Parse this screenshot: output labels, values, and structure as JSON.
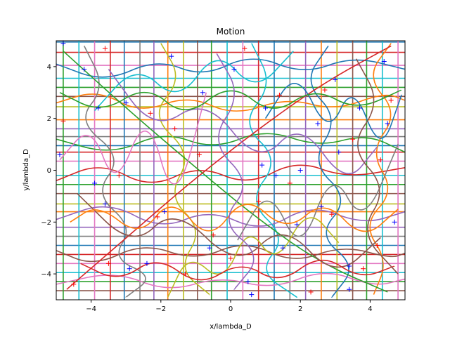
{
  "chart_data": {
    "type": "line",
    "title": "Motion",
    "xlabel": "x/lambda_D",
    "ylabel": "y/lambda_D",
    "xlim": [
      -5,
      5
    ],
    "ylim": [
      -5,
      5
    ],
    "xticks": [
      -4,
      -2,
      0,
      2,
      4
    ],
    "yticks": [
      -4,
      -2,
      0,
      2,
      4
    ],
    "xtick_labels": [
      "−4",
      "−2",
      "0",
      "2",
      "4"
    ],
    "ytick_labels": [
      "−4",
      "−2",
      "0",
      "2",
      "4"
    ],
    "grid": false,
    "legend": "none",
    "marker_colors": {
      "start": "#0000ff",
      "end": "#ff0000"
    },
    "palette": [
      "#1f77b4",
      "#ff7f0e",
      "#2ca02c",
      "#d62728",
      "#9467bd",
      "#8c564b",
      "#e377c2",
      "#7f7f7f",
      "#bcbd22",
      "#17becf"
    ],
    "horizontal_lines_y": [
      4.95,
      4.55,
      4.05,
      3.55,
      3.2,
      2.85,
      2.45,
      1.95,
      1.6,
      1.3,
      0.95,
      0.7,
      0.35,
      -0.2,
      -0.55,
      -0.9,
      -1.3,
      -1.6,
      -2.2,
      -2.55,
      -2.9,
      -3.25,
      -3.6,
      -3.95,
      -4.3,
      -4.65
    ],
    "vertical_lines_x": [
      -4.8,
      -4.35,
      -3.9,
      -3.45,
      -3.05,
      -2.6,
      -2.2,
      -1.8,
      -1.35,
      -0.95,
      -0.55,
      -0.1,
      0.35,
      0.8,
      1.25,
      1.7,
      2.15,
      2.6,
      3.05,
      3.5,
      3.9,
      4.35,
      4.8
    ],
    "trajectories": [
      {
        "x": [
          -5,
          -3.6,
          -2.1,
          -0.8,
          0.6,
          2.1,
          3.5,
          5
        ],
        "y": [
          4.1,
          3.4,
          4.3,
          3.6,
          4.5,
          3.7,
          4.4,
          3.9
        ]
      },
      {
        "x": [
          -5,
          -3.8,
          -2.6,
          -1.2,
          0.1,
          1.6,
          3.0,
          4.4,
          5
        ],
        "y": [
          2.6,
          3.1,
          2.2,
          2.9,
          2.1,
          2.8,
          2.3,
          3.0,
          2.7
        ]
      },
      {
        "x": [
          -5,
          -3.4,
          -1.9,
          -0.5,
          1.0,
          2.5,
          3.9,
          5
        ],
        "y": [
          1.2,
          0.6,
          1.5,
          0.8,
          1.6,
          0.9,
          1.4,
          0.7
        ]
      },
      {
        "x": [
          -5,
          -3.7,
          -2.3,
          -0.9,
          0.5,
          1.9,
          3.3,
          5
        ],
        "y": [
          -0.4,
          0.3,
          -0.7,
          0.2,
          -0.6,
          0.4,
          -0.3,
          0.1
        ]
      },
      {
        "x": [
          -5,
          -3.5,
          -2.0,
          -0.6,
          0.9,
          2.3,
          3.8,
          5
        ],
        "y": [
          -1.9,
          -1.2,
          -2.3,
          -1.5,
          -2.4,
          -1.3,
          -2.1,
          -1.6
        ]
      },
      {
        "x": [
          -5,
          -3.9,
          -2.5,
          -1.0,
          0.4,
          1.8,
          3.2,
          4.6,
          5
        ],
        "y": [
          -3.1,
          -3.7,
          -2.8,
          -3.5,
          -2.7,
          -3.6,
          -2.9,
          -3.4,
          -3.2
        ]
      },
      {
        "x": [
          -5,
          -3.3,
          -1.8,
          -0.3,
          1.2,
          2.7,
          4.1,
          5
        ],
        "y": [
          -4.4,
          -3.9,
          -4.7,
          -4.1,
          -4.6,
          -3.8,
          -4.5,
          -4.2
        ]
      },
      {
        "x": [
          -4.2,
          -3.6,
          -4.4,
          -3.1,
          -3.9,
          -2.8,
          -3.4,
          -2.2,
          -3.0
        ],
        "y": [
          4.8,
          3.2,
          1.9,
          0.5,
          -0.9,
          -2.2,
          -3.4,
          -4.1,
          -4.9
        ]
      },
      {
        "x": [
          -2.0,
          -1.4,
          -2.3,
          -1.1,
          -1.8,
          -0.8,
          -1.5,
          -0.6
        ],
        "y": [
          4.9,
          3.5,
          2.1,
          0.6,
          -1.0,
          -2.3,
          -3.8,
          -4.8
        ]
      },
      {
        "x": [
          0.6,
          1.2,
          0.3,
          1.4,
          0.5,
          1.6,
          0.8,
          1.9
        ],
        "y": [
          4.9,
          3.3,
          1.8,
          0.4,
          -1.2,
          -2.6,
          -3.9,
          -4.9
        ]
      },
      {
        "x": [
          2.8,
          2.1,
          3.1,
          2.3,
          3.4,
          2.5,
          3.6,
          2.9
        ],
        "y": [
          4.8,
          3.4,
          2.0,
          0.3,
          -1.1,
          -2.5,
          -3.7,
          -4.9
        ]
      },
      {
        "x": [
          4.6,
          3.9,
          4.8,
          4.0,
          4.7,
          3.8,
          4.5,
          4.1
        ],
        "y": [
          4.9,
          3.6,
          2.2,
          0.7,
          -0.8,
          -2.1,
          -3.5,
          -4.8
        ]
      },
      {
        "x": [
          -4.8,
          -3.0,
          -1.0,
          0.8,
          2.6,
          4.5
        ],
        "y": [
          4.6,
          2.4,
          0.1,
          -1.9,
          -3.6,
          -4.7
        ]
      },
      {
        "x": [
          -4.7,
          -2.9,
          -1.1,
          0.9,
          2.7,
          4.6
        ],
        "y": [
          -4.6,
          -2.5,
          -0.4,
          1.7,
          3.4,
          4.8
        ]
      },
      {
        "x": [
          -3.5,
          -2.2,
          -0.7,
          0.8,
          2.0,
          3.3,
          4.2
        ],
        "y": [
          3.9,
          1.5,
          2.8,
          0.2,
          1.9,
          -0.6,
          0.9
        ]
      },
      {
        "x": [
          -4.4,
          -2.8,
          -1.6,
          0.2,
          1.5,
          3.0,
          4.3
        ],
        "y": [
          -0.9,
          -3.0,
          -1.4,
          -3.8,
          -2.0,
          -4.2,
          -2.6
        ]
      },
      {
        "x": [
          -4.9,
          -4.0,
          -3.3,
          -2.4,
          -1.6,
          -0.7
        ],
        "y": [
          0.4,
          1.8,
          -0.8,
          2.4,
          -1.6,
          3.0
        ]
      },
      {
        "x": [
          0.2,
          1.1,
          2.0,
          2.9,
          3.8,
          4.8
        ],
        "y": [
          -2.7,
          -0.6,
          -3.3,
          0.1,
          -2.2,
          1.0
        ]
      },
      {
        "x": [
          -1.8,
          -1.2,
          -0.2,
          0.5,
          1.3,
          2.2,
          3.1
        ],
        "y": [
          -4.9,
          -3.2,
          -4.4,
          -2.1,
          -3.7,
          -1.4,
          -2.8
        ]
      },
      {
        "x": [
          -3.9,
          -2.7,
          -1.5,
          -0.4,
          0.7,
          1.8
        ],
        "y": [
          2.3,
          4.1,
          2.6,
          4.7,
          3.0,
          4.6
        ]
      },
      {
        "x": [
          1.0,
          1.9,
          2.8,
          3.5,
          4.3,
          4.9
        ],
        "y": [
          2.0,
          3.9,
          1.3,
          3.4,
          0.6,
          2.9
        ]
      },
      {
        "x": [
          -4.6,
          -3.8,
          -2.6,
          -1.7,
          -0.6,
          0.4,
          1.6,
          2.7,
          3.8,
          4.8
        ],
        "y": [
          -2.0,
          -1.3,
          -2.6,
          -1.0,
          -2.8,
          -0.9,
          -2.4,
          -1.1,
          -2.7,
          -1.5
        ]
      },
      {
        "x": [
          -4.9,
          -3.7,
          -2.4,
          -1.3,
          0.0,
          1.2,
          2.4,
          3.6,
          4.9
        ],
        "y": [
          3.0,
          2.2,
          3.3,
          2.0,
          3.4,
          2.1,
          3.2,
          2.3,
          3.1
        ]
      },
      {
        "x": [
          -4.3,
          -3.2,
          -2.1,
          -0.9,
          0.3,
          1.4,
          2.6,
          3.7,
          4.7
        ],
        "y": [
          -3.6,
          -4.3,
          -3.3,
          -4.5,
          -3.5,
          -4.4,
          -3.2,
          -4.2,
          -3.7
        ]
      },
      {
        "x": [
          -0.4,
          0.3,
          -0.6,
          0.6,
          -0.3,
          0.9,
          0.1
        ],
        "y": [
          4.5,
          2.9,
          1.1,
          -0.5,
          -2.0,
          -3.3,
          -4.6
        ]
      },
      {
        "x": [
          3.6,
          4.3,
          3.4,
          4.5,
          3.7,
          4.8
        ],
        "y": [
          4.3,
          2.6,
          0.9,
          -0.7,
          -2.4,
          -4.0
        ]
      }
    ],
    "start_markers": [
      {
        "x": -4.9,
        "y": 0.6
      },
      {
        "x": -4.2,
        "y": 3.9
      },
      {
        "x": -3.8,
        "y": 2.4
      },
      {
        "x": -3.6,
        "y": -1.3
      },
      {
        "x": -3.9,
        "y": -0.5
      },
      {
        "x": -3.0,
        "y": 2.6
      },
      {
        "x": -2.9,
        "y": -3.8
      },
      {
        "x": -2.4,
        "y": -3.6
      },
      {
        "x": -1.9,
        "y": -1.6
      },
      {
        "x": -1.7,
        "y": 4.4
      },
      {
        "x": -0.8,
        "y": 3.0
      },
      {
        "x": -0.6,
        "y": -3.0
      },
      {
        "x": 0.1,
        "y": 3.9
      },
      {
        "x": 0.5,
        "y": -4.3
      },
      {
        "x": 0.6,
        "y": -4.8
      },
      {
        "x": 0.9,
        "y": 0.2
      },
      {
        "x": 1.0,
        "y": 2.4
      },
      {
        "x": 1.3,
        "y": -0.2
      },
      {
        "x": 1.5,
        "y": -3.0
      },
      {
        "x": 1.9,
        "y": -2.1
      },
      {
        "x": 2.0,
        "y": 0.0
      },
      {
        "x": 2.5,
        "y": 1.8
      },
      {
        "x": 2.6,
        "y": -1.4
      },
      {
        "x": 3.0,
        "y": 3.5
      },
      {
        "x": 3.1,
        "y": 0.7
      },
      {
        "x": 3.4,
        "y": -4.6
      },
      {
        "x": 3.4,
        "y": -3.7
      },
      {
        "x": 3.7,
        "y": 2.4
      },
      {
        "x": 4.4,
        "y": 4.2
      },
      {
        "x": 4.5,
        "y": 1.8
      },
      {
        "x": 4.7,
        "y": -2.0
      },
      {
        "x": -4.8,
        "y": 4.9
      }
    ],
    "end_markers": [
      {
        "x": -4.8,
        "y": 1.9
      },
      {
        "x": -4.5,
        "y": -4.4
      },
      {
        "x": -3.6,
        "y": 4.7
      },
      {
        "x": -3.5,
        "y": -3.6
      },
      {
        "x": -3.2,
        "y": -0.2
      },
      {
        "x": -2.3,
        "y": 2.2
      },
      {
        "x": -2.1,
        "y": -1.8
      },
      {
        "x": -1.6,
        "y": 1.6
      },
      {
        "x": -1.3,
        "y": -4.0
      },
      {
        "x": -0.9,
        "y": 0.6
      },
      {
        "x": 0.0,
        "y": -3.4
      },
      {
        "x": 0.4,
        "y": 4.7
      },
      {
        "x": 0.8,
        "y": -1.2
      },
      {
        "x": 1.4,
        "y": 2.9
      },
      {
        "x": 1.7,
        "y": -0.5
      },
      {
        "x": 2.3,
        "y": -4.7
      },
      {
        "x": 2.7,
        "y": 3.1
      },
      {
        "x": 2.9,
        "y": -1.7
      },
      {
        "x": 3.5,
        "y": 1.2
      },
      {
        "x": 3.8,
        "y": -3.8
      },
      {
        "x": 4.3,
        "y": 0.4
      },
      {
        "x": 4.6,
        "y": 2.7
      },
      {
        "x": 4.2,
        "y": -2.9
      },
      {
        "x": -0.5,
        "y": -2.5
      }
    ]
  }
}
